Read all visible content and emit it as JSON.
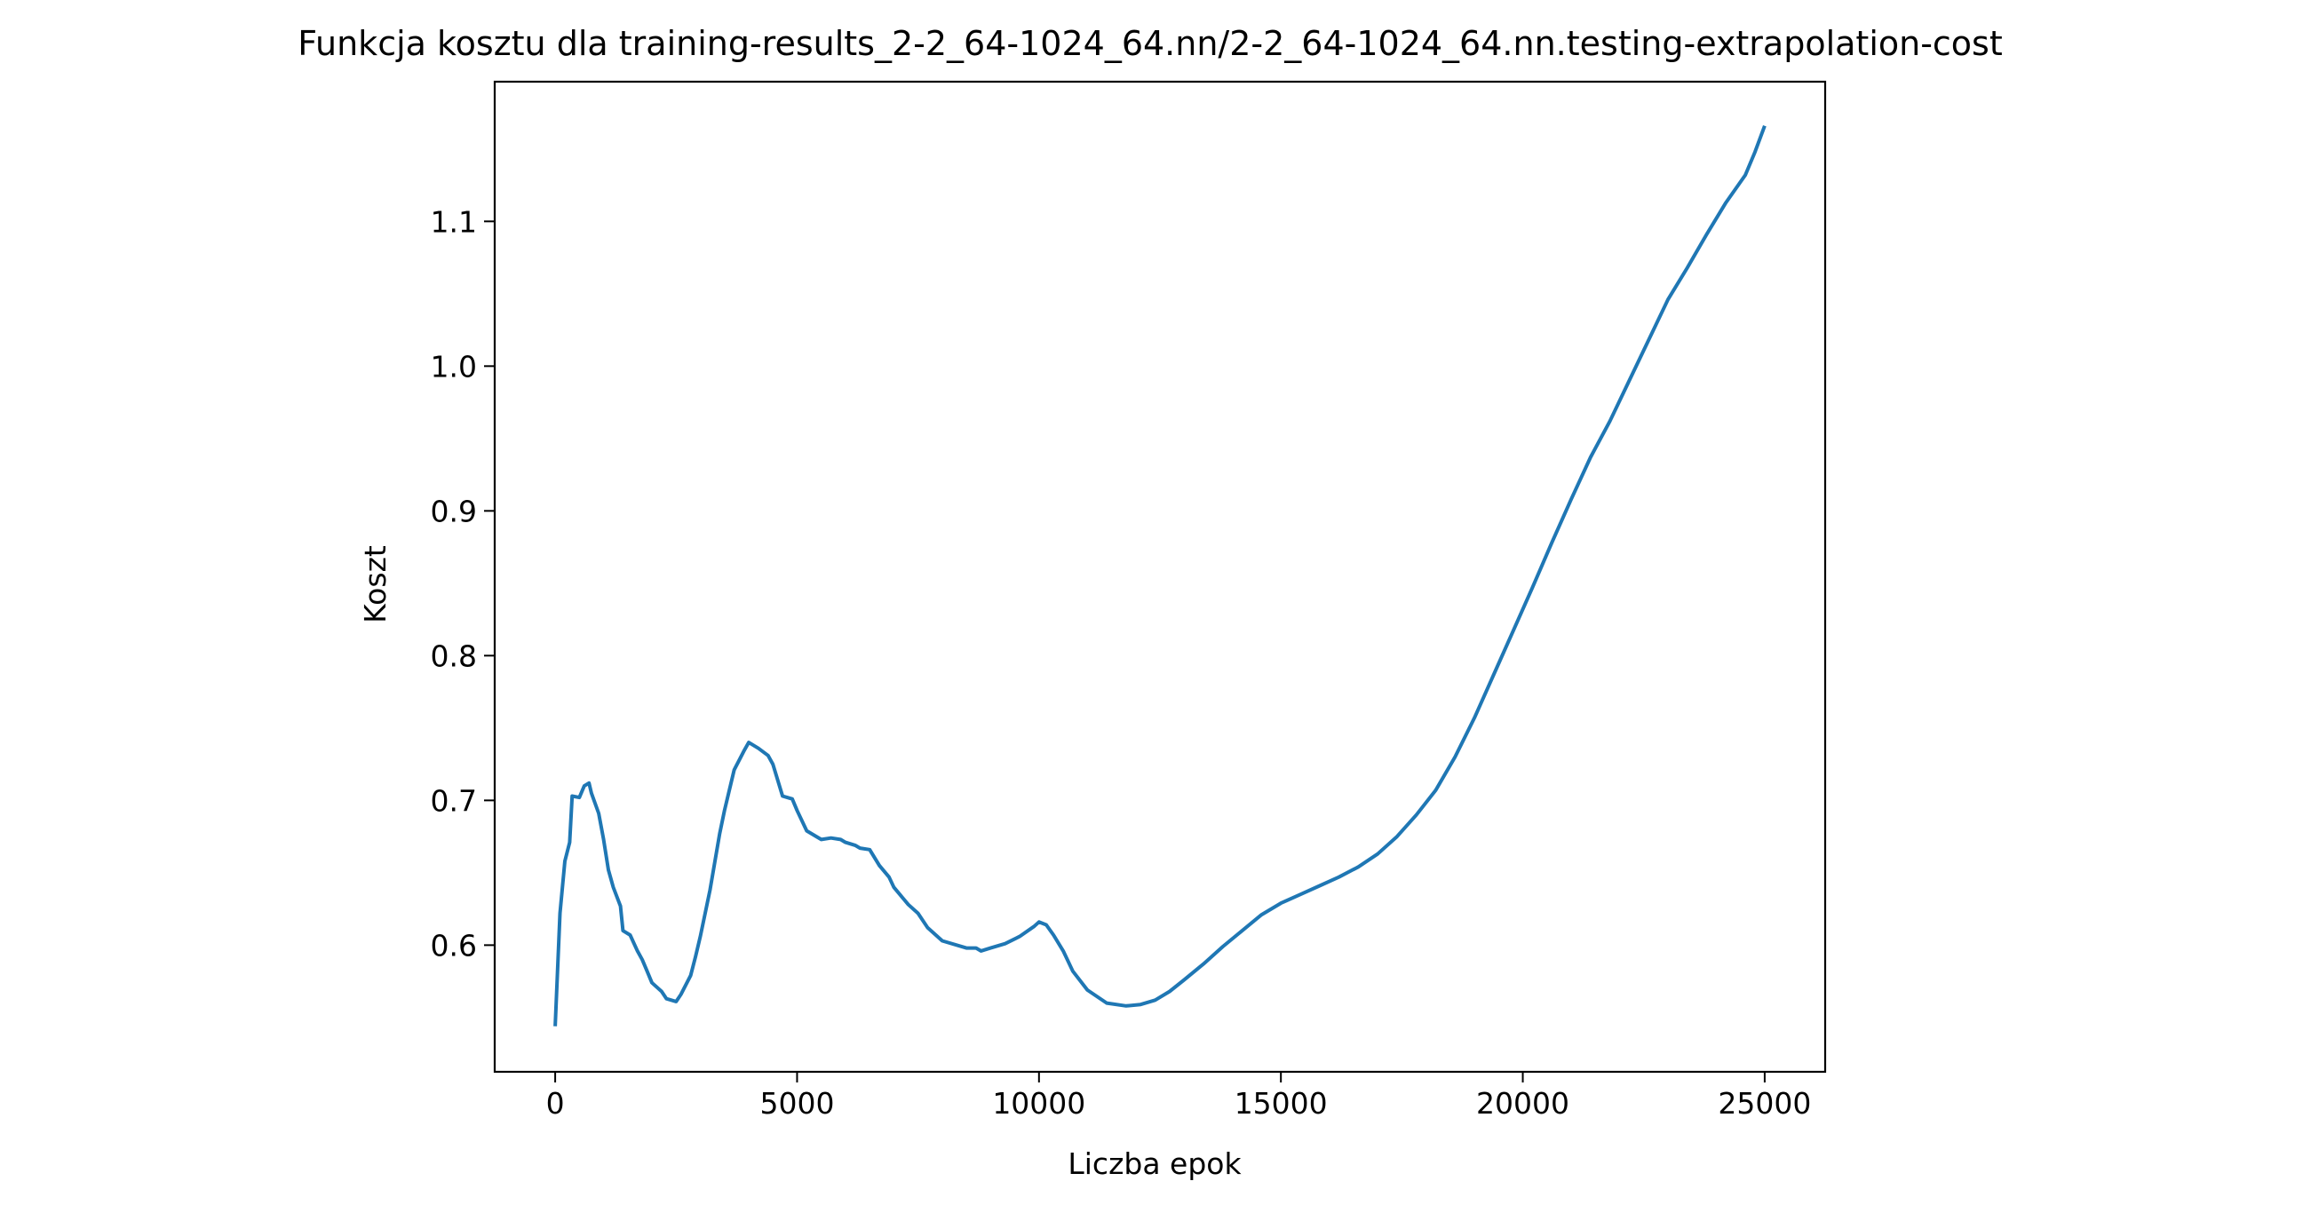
{
  "chart_data": {
    "type": "line",
    "title": "Funkcja kosztu dla training-results_2-2_64-1024_64.nn/2-2_64-1024_64.nn.testing-extrapolation-cost",
    "xlabel": "Liczba epok",
    "ylabel": "Koszt",
    "xlim": [
      -1250,
      26250
    ],
    "ylim": [
      0.5125,
      1.1965
    ],
    "xticks": [
      0,
      5000,
      10000,
      15000,
      20000,
      25000
    ],
    "xtick_labels": [
      "0",
      "5000",
      "10000",
      "15000",
      "20000",
      "25000"
    ],
    "yticks": [
      0.6,
      0.7,
      0.8,
      0.9,
      1.0,
      1.1
    ],
    "ytick_labels": [
      "0.6",
      "0.7",
      "0.8",
      "0.9",
      "1.0",
      "1.1"
    ],
    "grid": false,
    "legend": "none",
    "series": [
      {
        "color": "#1f77b4",
        "x": [
          0,
          100,
          200,
          300,
          350,
          500,
          600,
          700,
          750,
          900,
          1000,
          1100,
          1200,
          1350,
          1400,
          1550,
          1700,
          1800,
          1900,
          2000,
          2200,
          2300,
          2500,
          2600,
          2800,
          2900,
          3000,
          3200,
          3400,
          3500,
          3700,
          3900,
          4000,
          4200,
          4400,
          4500,
          4700,
          4900,
          5000,
          5200,
          5400,
          5500,
          5700,
          5900,
          6000,
          6200,
          6300,
          6500,
          6700,
          6900,
          7000,
          7300,
          7500,
          7700,
          8000,
          8500,
          8700,
          8800,
          9000,
          9300,
          9600,
          9900,
          10000,
          10150,
          10300,
          10500,
          10700,
          11000,
          11400,
          11800,
          12100,
          12400,
          12700,
          13000,
          13400,
          13800,
          14200,
          14600,
          15000,
          15400,
          15800,
          16200,
          16600,
          17000,
          17400,
          17800,
          18200,
          18600,
          19000,
          19400,
          19800,
          20200,
          20600,
          21000,
          21400,
          21800,
          22200,
          22600,
          23000,
          23400,
          23800,
          24200,
          24600,
          24800,
          25000
        ],
        "y": [
          0.544,
          0.622,
          0.658,
          0.671,
          0.703,
          0.702,
          0.71,
          0.712,
          0.705,
          0.691,
          0.673,
          0.652,
          0.64,
          0.627,
          0.61,
          0.607,
          0.596,
          0.59,
          0.582,
          0.574,
          0.568,
          0.563,
          0.561,
          0.566,
          0.579,
          0.592,
          0.606,
          0.638,
          0.677,
          0.693,
          0.721,
          0.734,
          0.74,
          0.736,
          0.731,
          0.725,
          0.703,
          0.701,
          0.693,
          0.679,
          0.675,
          0.673,
          0.674,
          0.673,
          0.671,
          0.669,
          0.667,
          0.666,
          0.655,
          0.647,
          0.64,
          0.628,
          0.622,
          0.612,
          0.603,
          0.598,
          0.598,
          0.596,
          0.598,
          0.601,
          0.606,
          0.613,
          0.616,
          0.614,
          0.607,
          0.596,
          0.582,
          0.569,
          0.56,
          0.558,
          0.559,
          0.562,
          0.568,
          0.576,
          0.587,
          0.599,
          0.61,
          0.621,
          0.629,
          0.635,
          0.641,
          0.647,
          0.654,
          0.663,
          0.675,
          0.69,
          0.707,
          0.73,
          0.757,
          0.787,
          0.817,
          0.847,
          0.878,
          0.908,
          0.937,
          0.962,
          0.99,
          1.018,
          1.046,
          1.068,
          1.091,
          1.113,
          1.132,
          1.148,
          1.166
        ]
      }
    ]
  }
}
